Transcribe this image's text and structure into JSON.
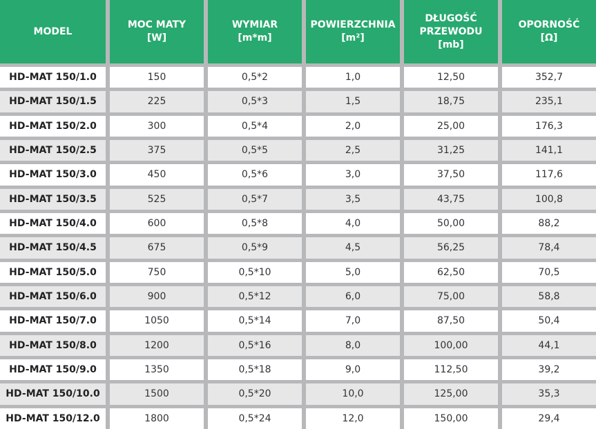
{
  "headers": [
    "MODEL",
    "MOC MATY\n[W]",
    "WYMIAR\n[m*m]",
    "POWIERZCHNIA\n[m²]",
    "DŁUGOŚĆ\nPRZEWODU\n[mb]",
    "OPORNOŚĆ\n[Ω]"
  ],
  "colors": {
    "header": "#27a96f",
    "row_alt": "#e7e7e8",
    "grid": "#b7b8ba"
  },
  "rows": [
    [
      "HD-MAT 150/1.0",
      "150",
      "0,5*2",
      "1,0",
      "12,50",
      "352,7"
    ],
    [
      "HD-MAT 150/1.5",
      "225",
      "0,5*3",
      "1,5",
      "18,75",
      "235,1"
    ],
    [
      "HD-MAT 150/2.0",
      "300",
      "0,5*4",
      "2,0",
      "25,00",
      "176,3"
    ],
    [
      "HD-MAT 150/2.5",
      "375",
      "0,5*5",
      "2,5",
      "31,25",
      "141,1"
    ],
    [
      "HD-MAT 150/3.0",
      "450",
      "0,5*6",
      "3,0",
      "37,50",
      "117,6"
    ],
    [
      "HD-MAT 150/3.5",
      "525",
      "0,5*7",
      "3,5",
      "43,75",
      "100,8"
    ],
    [
      "HD-MAT 150/4.0",
      "600",
      "0,5*8",
      "4,0",
      "50,00",
      "88,2"
    ],
    [
      "HD-MAT 150/4.5",
      "675",
      "0,5*9",
      "4,5",
      "56,25",
      "78,4"
    ],
    [
      "HD-MAT 150/5.0",
      "750",
      "0,5*10",
      "5,0",
      "62,50",
      "70,5"
    ],
    [
      "HD-MAT 150/6.0",
      "900",
      "0,5*12",
      "6,0",
      "75,00",
      "58,8"
    ],
    [
      "HD-MAT 150/7.0",
      "1050",
      "0,5*14",
      "7,0",
      "87,50",
      "50,4"
    ],
    [
      "HD-MAT 150/8.0",
      "1200",
      "0,5*16",
      "8,0",
      "100,00",
      "44,1"
    ],
    [
      "HD-MAT 150/9.0",
      "1350",
      "0,5*18",
      "9,0",
      "112,50",
      "39,2"
    ],
    [
      "HD-MAT 150/10.0",
      "1500",
      "0,5*20",
      "10,0",
      "125,00",
      "35,3"
    ],
    [
      "HD-MAT 150/12.0",
      "1800",
      "0,5*24",
      "12,0",
      "150,00",
      "29,4"
    ]
  ]
}
